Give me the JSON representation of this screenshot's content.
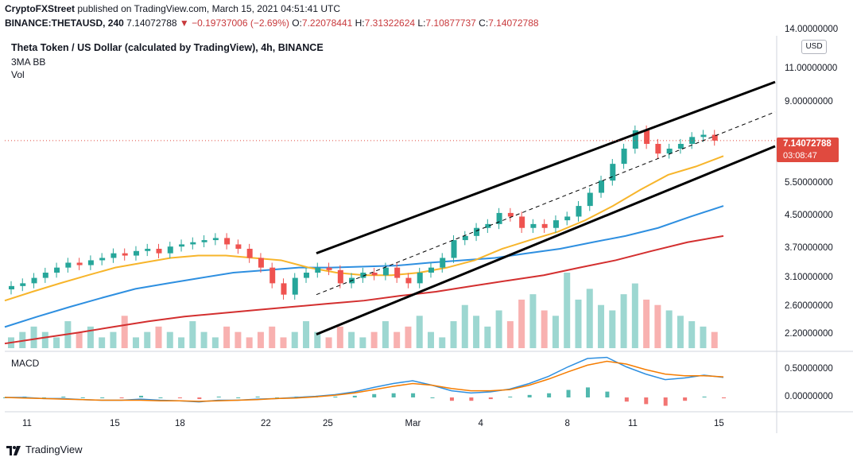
{
  "header": {
    "publisher": "CryptoFXStreet",
    "published_text": "published on TradingView.com, March 15, 2021 04:51:41 UTC",
    "symbol_line_prefix": "BINANCE:THETAUSD, 240",
    "last_price": "7.14072788",
    "change_text": "▼ −0.19737006 (−2.69%)",
    "o_label": "O:",
    "o_value": "7.22078441",
    "h_label": "H:",
    "h_value": "7.31322624",
    "l_label": "L:",
    "l_value": "7.10877737",
    "c_label": "C:",
    "c_value": "7.14072788"
  },
  "legend": {
    "title": "Theta Token / US Dollar (calculated by TradingView), 4h, BINANCE",
    "indicator": "3MA BB",
    "volume": "Vol"
  },
  "macd_title": "MACD",
  "currency_button": "USD",
  "price_tag": {
    "price": "7.14072788",
    "countdown": "03:08:47"
  },
  "colors": {
    "up": "#26a69a",
    "down": "#ef5350",
    "ma_fast": "#f7b52b",
    "ma_mid": "#2e8fe0",
    "ma_slow": "#d32f2f",
    "channel": "#000000",
    "macd": "#2e8fe0",
    "signal": "#f57c00",
    "price_line": "#e04a3f"
  },
  "chart_data": {
    "type": "candlestick",
    "y_axis_labels": [
      "14.00000000",
      "11.00000000",
      "9.00000000",
      "5.50000000",
      "4.50000000",
      "3.70000000",
      "3.10000000",
      "2.60000000",
      "2.20000000"
    ],
    "y_scale": "log",
    "x_axis_labels": [
      "11",
      "15",
      "18",
      "22",
      "25",
      "Mar",
      "4",
      "8",
      "11",
      "15"
    ],
    "macd_axis_labels": [
      "0.50000000",
      "0.00000000"
    ],
    "price_close_series": [
      2.95,
      3.0,
      3.1,
      3.2,
      3.3,
      3.4,
      3.35,
      3.45,
      3.5,
      3.6,
      3.55,
      3.65,
      3.7,
      3.6,
      3.75,
      3.8,
      3.85,
      3.9,
      3.95,
      3.8,
      3.7,
      3.5,
      3.3,
      3.0,
      2.8,
      3.1,
      3.2,
      3.3,
      3.25,
      3.0,
      3.1,
      3.2,
      3.15,
      3.3,
      3.1,
      3.0,
      3.2,
      3.3,
      3.5,
      3.9,
      4.0,
      4.2,
      4.3,
      4.6,
      4.5,
      4.2,
      4.3,
      4.2,
      4.4,
      4.5,
      4.8,
      5.2,
      5.6,
      6.2,
      6.8,
      7.6,
      7.0,
      6.6,
      6.8,
      7.0,
      7.3,
      7.4,
      7.14
    ],
    "ma_fast_series": [
      2.7,
      2.85,
      3.0,
      3.15,
      3.3,
      3.4,
      3.5,
      3.55,
      3.55,
      3.5,
      3.45,
      3.3,
      3.2,
      3.15,
      3.15,
      3.2,
      3.3,
      3.45,
      3.7,
      3.9,
      4.1,
      4.4,
      4.8,
      5.3,
      5.8,
      6.1,
      6.5
    ],
    "ma_mid_series": [
      2.3,
      2.45,
      2.6,
      2.75,
      2.9,
      3.0,
      3.1,
      3.2,
      3.25,
      3.3,
      3.3,
      3.32,
      3.34,
      3.4,
      3.45,
      3.5,
      3.6,
      3.7,
      3.85,
      4.0,
      4.2,
      4.5,
      4.8
    ],
    "ma_slow_series": [
      2.08,
      2.15,
      2.22,
      2.3,
      2.38,
      2.45,
      2.5,
      2.55,
      2.6,
      2.65,
      2.7,
      2.78,
      2.85,
      2.95,
      3.05,
      3.15,
      3.3,
      3.45,
      3.65,
      3.85,
      4.0
    ],
    "channel": {
      "upper": [
        [
          "Feb 24",
          3.6
        ],
        [
          "Mar 15+",
          10.2
        ]
      ],
      "lower": [
        [
          "Feb 24",
          2.2
        ],
        [
          "Mar 15+",
          6.9
        ]
      ],
      "mid": [
        [
          "Feb 24",
          2.8
        ],
        [
          "Mar 15+",
          8.5
        ]
      ]
    },
    "volume_series": [
      2,
      3,
      4,
      3,
      2,
      5,
      3,
      4,
      2,
      3,
      6,
      2,
      3,
      4,
      3,
      2,
      5,
      3,
      2,
      4,
      3,
      2,
      3,
      4,
      2,
      3,
      5,
      3,
      2,
      4,
      3,
      2,
      3,
      5,
      3,
      4,
      6,
      3,
      2,
      5,
      8,
      6,
      4,
      7,
      5,
      9,
      10,
      7,
      6,
      14,
      9,
      11,
      8,
      7,
      10,
      12,
      9,
      8,
      7,
      6,
      5,
      4,
      3
    ],
    "macd_series": [
      0.0,
      0.0,
      -0.02,
      -0.02,
      -0.04,
      -0.05,
      -0.05,
      -0.03,
      -0.05,
      -0.06,
      -0.08,
      -0.05,
      -0.05,
      -0.03,
      -0.02,
      0.0,
      0.02,
      0.05,
      0.1,
      0.18,
      0.25,
      0.3,
      0.22,
      0.12,
      0.08,
      0.1,
      0.15,
      0.25,
      0.38,
      0.55,
      0.7,
      0.72,
      0.55,
      0.42,
      0.32,
      0.35,
      0.4,
      0.36
    ],
    "signal_series": [
      0.0,
      -0.01,
      -0.02,
      -0.03,
      -0.04,
      -0.05,
      -0.05,
      -0.05,
      -0.06,
      -0.06,
      -0.07,
      -0.06,
      -0.05,
      -0.04,
      -0.02,
      -0.01,
      0.01,
      0.04,
      0.08,
      0.14,
      0.2,
      0.25,
      0.22,
      0.16,
      0.12,
      0.12,
      0.14,
      0.22,
      0.33,
      0.46,
      0.58,
      0.65,
      0.6,
      0.5,
      0.42,
      0.39,
      0.39,
      0.37
    ],
    "macd_hist_series": [
      0.0,
      0.01,
      0.0,
      0.01,
      0.0,
      0.0,
      -0.01,
      0.02,
      0.0,
      -0.01,
      -0.02,
      0.01,
      0.0,
      0.01,
      0.0,
      0.01,
      0.01,
      0.01,
      0.02,
      0.04,
      0.05,
      0.05,
      0.0,
      -0.04,
      -0.04,
      -0.02,
      0.01,
      0.03,
      0.05,
      0.09,
      0.12,
      0.07,
      -0.05,
      -0.08,
      -0.1,
      -0.04,
      0.01,
      -0.01
    ]
  }
}
